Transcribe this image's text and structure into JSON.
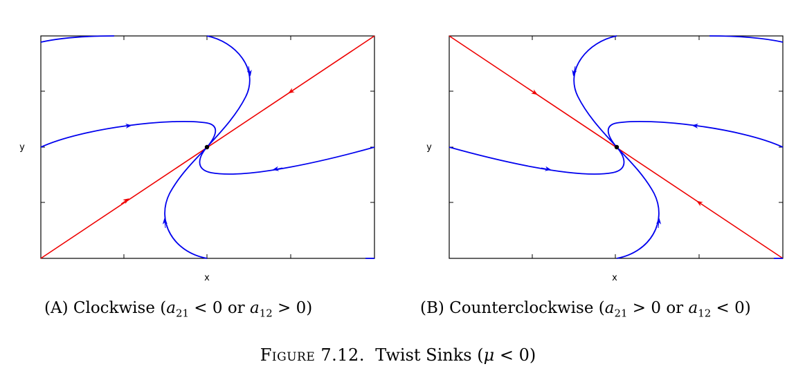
{
  "panels": [
    {
      "x_label": "x",
      "y_label": "y",
      "caption_tag": "(A)",
      "caption_text": "Clockwise (",
      "caption_math": "a",
      "caption_sub1": "21",
      "caption_rel1": " < 0 or ",
      "caption_math2": "a",
      "caption_sub2": "12",
      "caption_rel2": " > 0)"
    },
    {
      "x_label": "x",
      "y_label": "y",
      "caption_tag": "(B)",
      "caption_text": "Counterclockwise (",
      "caption_math": "a",
      "caption_sub1": "21",
      "caption_rel1": " > 0 or ",
      "caption_math2": "a",
      "caption_sub2": "12",
      "caption_rel2": " < 0)"
    }
  ],
  "figure": {
    "label": "Figure 7.12.",
    "title": "Twist Sinks (",
    "mu": "μ",
    "rel": " < 0)"
  },
  "colors": {
    "trajectory": "#0000ee",
    "eigenline": "#ee0000",
    "axes": "#000000"
  }
}
